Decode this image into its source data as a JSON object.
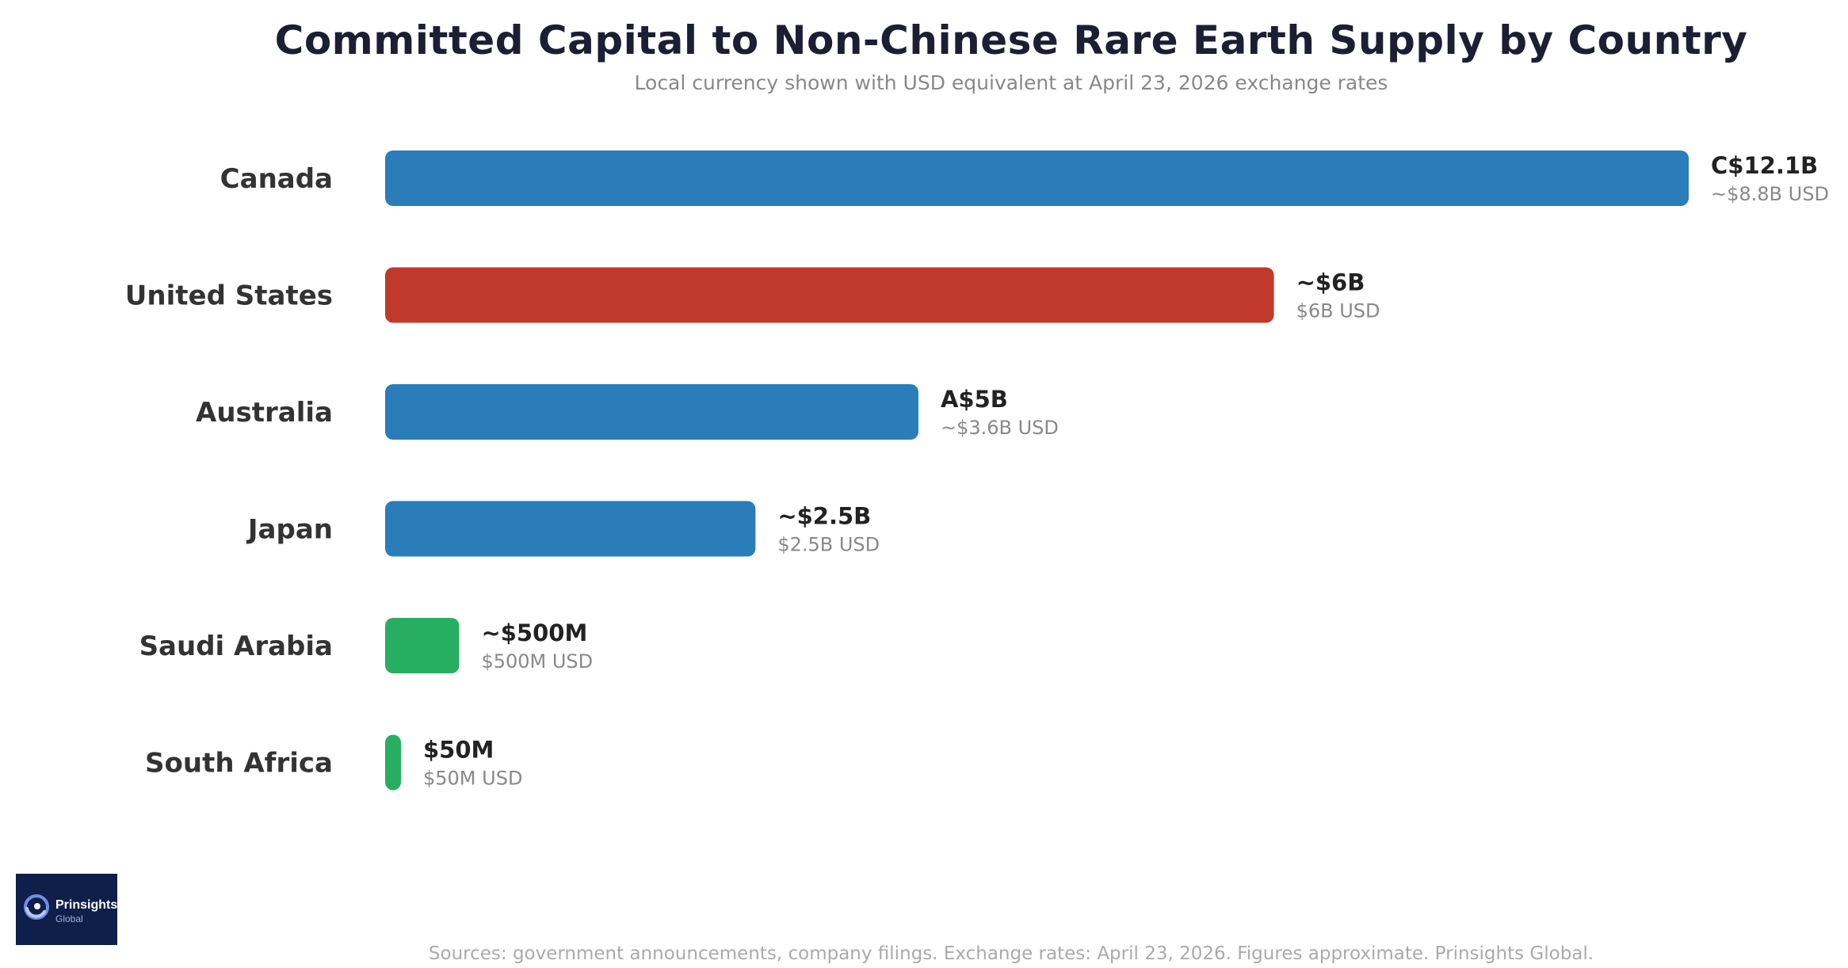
{
  "chart_data": {
    "type": "bar",
    "orientation": "horizontal",
    "title": "Committed Capital to Non-Chinese Rare Earth Supply by Country",
    "subtitle": "Local currency shown with USD equivalent at April 23, 2026 exchange rates",
    "categories": [
      "Canada",
      "United States",
      "Australia",
      "Japan",
      "Saudi Arabia",
      "South Africa"
    ],
    "values_usd_billion": [
      8.8,
      6.0,
      3.6,
      2.5,
      0.5,
      0.05
    ],
    "local_labels": [
      "C$12.1B",
      "~$6B",
      "A$5B",
      "~$2.5B",
      "~$500M",
      "$50M"
    ],
    "usd_labels": [
      "~$8.8B USD",
      "$6B USD",
      "~$3.6B USD",
      "$2.5B USD",
      "$500M USD",
      "$50M USD"
    ],
    "bar_colors": [
      "#2a7db8",
      "#c0392b",
      "#2a7db8",
      "#2a7db8",
      "#27ae60",
      "#27ae60"
    ],
    "grid": false,
    "legend": "none"
  },
  "footer": {
    "sources": "Sources: government announcements, company filings. Exchange rates: April 23, 2026. Figures approximate. Prinsights Global."
  },
  "logo": {
    "name": "Prinsights",
    "sub": "Global",
    "icon": "swirl-logo-icon"
  },
  "colors": {
    "title": "#1c1f33",
    "subtitle": "#888888",
    "category_label": "#333333",
    "value_label": "#222222",
    "usd_label": "#888888",
    "logo_bg": "#0f1f4a"
  }
}
